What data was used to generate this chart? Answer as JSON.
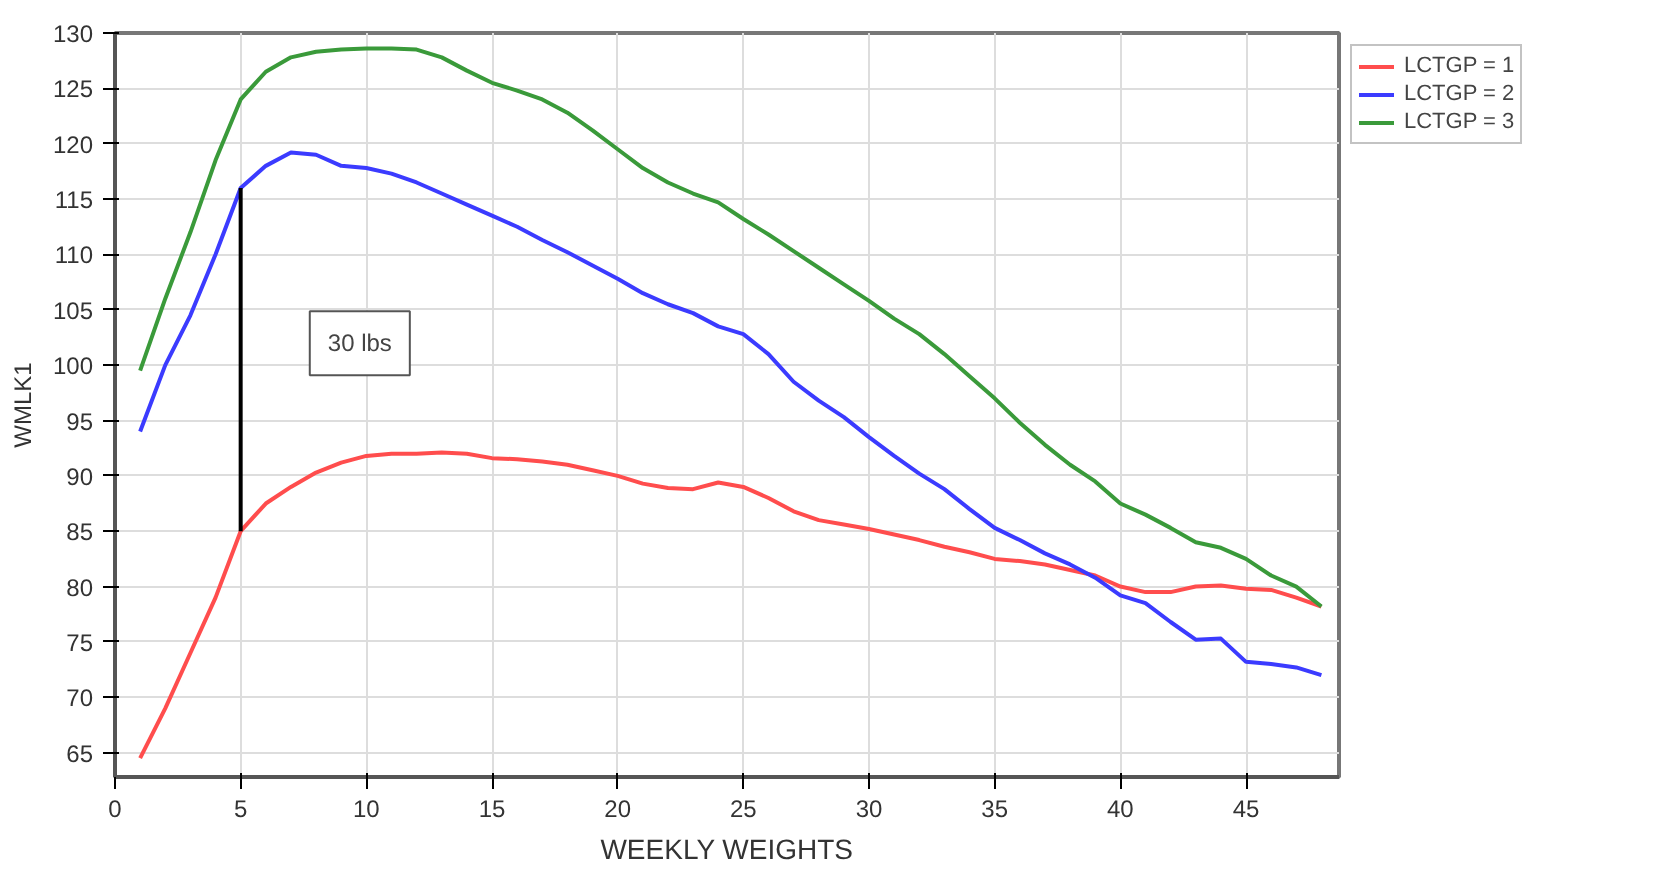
{
  "chart_data": {
    "type": "line",
    "xlabel": "WEEKLY WEIGHTS",
    "ylabel": "WMLK1",
    "x": [
      1,
      2,
      3,
      4,
      5,
      6,
      7,
      8,
      9,
      10,
      11,
      12,
      13,
      14,
      15,
      16,
      17,
      18,
      19,
      20,
      21,
      22,
      23,
      24,
      25,
      26,
      27,
      28,
      29,
      30,
      31,
      32,
      33,
      34,
      35,
      36,
      37,
      38,
      39,
      40,
      41,
      42,
      43,
      44,
      45,
      46,
      47,
      48
    ],
    "series": [
      {
        "name": "LCTGP = 1",
        "color": "#ff4d4d",
        "values": [
          64.5,
          69,
          74,
          79,
          85,
          87.5,
          89,
          90.3,
          91.2,
          91.8,
          92,
          92,
          92.1,
          92,
          91.6,
          91.5,
          91.3,
          91,
          90.5,
          90,
          89.3,
          88.9,
          88.8,
          89.4,
          89,
          88,
          86.8,
          86,
          85.6,
          85.2,
          84.7,
          84.2,
          83.6,
          83.1,
          82.5,
          82.3,
          82,
          81.5,
          81,
          80,
          79.5,
          79.5,
          80,
          80.1,
          79.8,
          79.7,
          79,
          78.2
        ]
      },
      {
        "name": "LCTGP = 2",
        "color": "#3b3bff",
        "values": [
          94,
          100,
          104.5,
          110,
          116,
          118,
          119.2,
          119,
          118,
          117.8,
          117.3,
          116.5,
          115.5,
          114.5,
          113.5,
          112.5,
          111.3,
          110.2,
          109,
          107.8,
          106.5,
          105.5,
          104.7,
          103.5,
          102.8,
          101,
          98.5,
          96.8,
          95.3,
          93.5,
          91.8,
          90.2,
          88.8,
          87,
          85.3,
          84.2,
          83,
          82,
          80.8,
          79.2,
          78.5,
          76.8,
          75.2,
          75.3,
          73.2,
          73,
          72.7,
          72
        ]
      },
      {
        "type": "line",
        "color": "#000000",
        "x": [
          5,
          5
        ],
        "values": [
          85,
          116
        ]
      },
      {
        "name": "LCTGP = 3",
        "color": "#3a9a3a",
        "values": [
          99.5,
          106,
          112,
          118.5,
          124,
          126.5,
          127.8,
          128.3,
          128.5,
          128.6,
          128.6,
          128.5,
          127.8,
          126.6,
          125.5,
          124.8,
          124,
          122.8,
          121.2,
          119.5,
          117.8,
          116.5,
          115.5,
          114.7,
          113.2,
          111.8,
          110.3,
          108.8,
          107.3,
          105.8,
          104.2,
          102.8,
          101,
          99,
          97,
          94.8,
          92.8,
          91,
          89.5,
          87.5,
          86.5,
          85.3,
          84,
          83.5,
          82.5,
          81,
          80,
          78.2
        ]
      }
    ],
    "annotations": [
      "30 lbs"
    ],
    "xlim": [
      0,
      48.7
    ],
    "ylim": [
      62.8,
      130
    ],
    "xticks": [
      0,
      5,
      10,
      15,
      20,
      25,
      30,
      35,
      40,
      45
    ],
    "yticks": [
      65,
      70,
      75,
      80,
      85,
      90,
      95,
      100,
      105,
      110,
      115,
      120,
      125,
      130
    ],
    "grid": true,
    "legend": "top right"
  }
}
